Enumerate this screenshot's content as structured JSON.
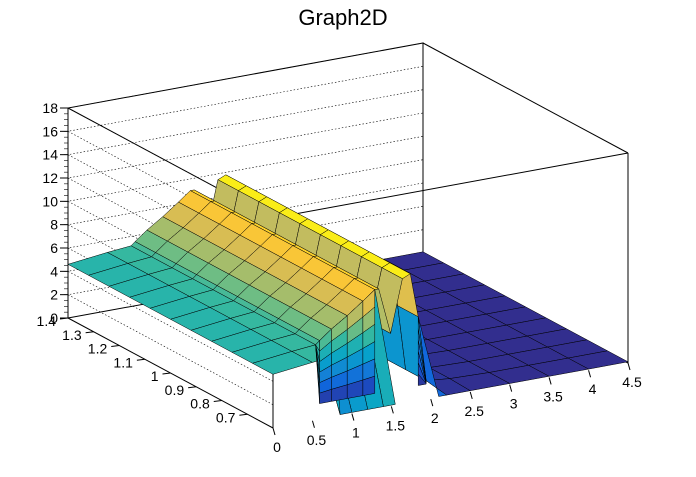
{
  "chart_data": {
    "type": "surface3d",
    "title": "Graph2D",
    "xlabel": "",
    "ylabel": "",
    "zlabel": "",
    "xlim": [
      0,
      4.5
    ],
    "ylim": [
      0.6,
      1.4
    ],
    "zlim": [
      0,
      18
    ],
    "x_ticks": [
      "0",
      "0.5",
      "1",
      "1.5",
      "2",
      "2.5",
      "3",
      "3.5",
      "4",
      "4.5"
    ],
    "y_ticks": [
      "0.7",
      "0.8",
      "0.9",
      "1",
      "1.1",
      "1.2",
      "1.3",
      "1.4"
    ],
    "z_ticks": [
      "0",
      "2",
      "4",
      "6",
      "8",
      "10",
      "12",
      "14",
      "16",
      "18"
    ],
    "z_grid": true,
    "colormap": [
      "#352a87",
      "#0f5cdd",
      "#1481d6",
      "#06a4ca",
      "#2eb7a4",
      "#87bf77",
      "#d1bb59",
      "#fec832",
      "#f9fb0e"
    ],
    "surface_profile": {
      "x": [
        0,
        0.5,
        0.8,
        0.85,
        1.0,
        1.2,
        1.4,
        1.55,
        1.6,
        1.75,
        1.9,
        2.0,
        2.1,
        2.2,
        2.5,
        3.0,
        3.5,
        4.0,
        4.5
      ],
      "z_front": [
        4.6,
        5.0,
        5.2,
        0.1,
        0.1,
        0.1,
        0.1,
        0.1,
        null,
        null,
        null,
        null,
        0.1,
        0.1,
        0.1,
        0.1,
        0.1,
        0.1,
        0.1
      ],
      "z_top": [
        4.6,
        5.0,
        5.2,
        5.5,
        6.3,
        7.2,
        8.2,
        9.0,
        9.0,
        5.0,
        9.5,
        9.8,
        6.0,
        0.4,
        0.2,
        0.1,
        0.1,
        0.1,
        0.1
      ],
      "y_range": [
        0.6,
        1.4
      ]
    }
  }
}
